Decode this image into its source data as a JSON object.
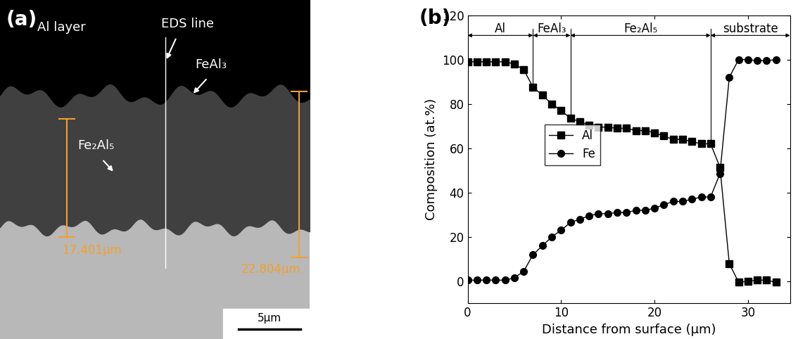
{
  "micrograph": {
    "panel_label": "(a)",
    "top_layer": "Al layer",
    "line_label": "EDS line",
    "phase_upper": "FeAl₃",
    "phase_lower": "Fe₂Al₅",
    "measurements": [
      "17.401μm",
      "22.804μm"
    ],
    "scale_bar": "5μm"
  },
  "chart_data": {
    "type": "line",
    "panel_label": "(b)",
    "x_label": "Distance from surface (μm)",
    "y_label": "Composition (at.%)",
    "x": [
      0,
      1,
      2,
      3,
      4,
      5,
      6,
      7,
      8,
      9,
      10,
      11,
      12,
      13,
      14,
      15,
      16,
      17,
      18,
      19,
      20,
      21,
      22,
      23,
      24,
      25,
      26,
      27,
      28,
      29,
      30,
      31,
      32,
      33
    ],
    "series": [
      {
        "name": "Al",
        "color": "#000000",
        "marker": "square",
        "line_style": "solid",
        "values": [
          99,
          99,
          99,
          99,
          99,
          98,
          95.5,
          87.5,
          84,
          80,
          77,
          73.5,
          72,
          70.5,
          69.5,
          69.5,
          69,
          69,
          68,
          68,
          67,
          65.5,
          64,
          64,
          63,
          62,
          62,
          51.5,
          8,
          -0.5,
          0,
          0.5,
          0.5,
          -0.5
        ]
      },
      {
        "name": "Fe",
        "color": "#000000",
        "marker": "circle",
        "line_style": "solid",
        "values": [
          0.5,
          0.5,
          0.5,
          0.5,
          0.5,
          1.5,
          4.5,
          12,
          16,
          20,
          23,
          26.5,
          28,
          29.5,
          30.5,
          30.5,
          31,
          31,
          32,
          32,
          33,
          34.5,
          36,
          36,
          37,
          38,
          38,
          48.5,
          92,
          100,
          100,
          99.5,
          99.5,
          100
        ]
      }
    ],
    "regions": [
      {
        "label": "Al",
        "start": 0,
        "end": 7
      },
      {
        "label": "FeAl₃",
        "start": 7,
        "end": 11
      },
      {
        "label": "Fe₂Al₅",
        "start": 11,
        "end": 26
      },
      {
        "label": "substrate",
        "start": 26,
        "end": 34.5
      }
    ],
    "xlim": [
      0,
      34.5
    ],
    "xticks": [
      0,
      10,
      20,
      30
    ],
    "ylim": [
      -10,
      120
    ],
    "yticks": [
      0,
      20,
      40,
      60,
      80,
      100,
      120
    ],
    "grid": false,
    "legend": "center left"
  }
}
